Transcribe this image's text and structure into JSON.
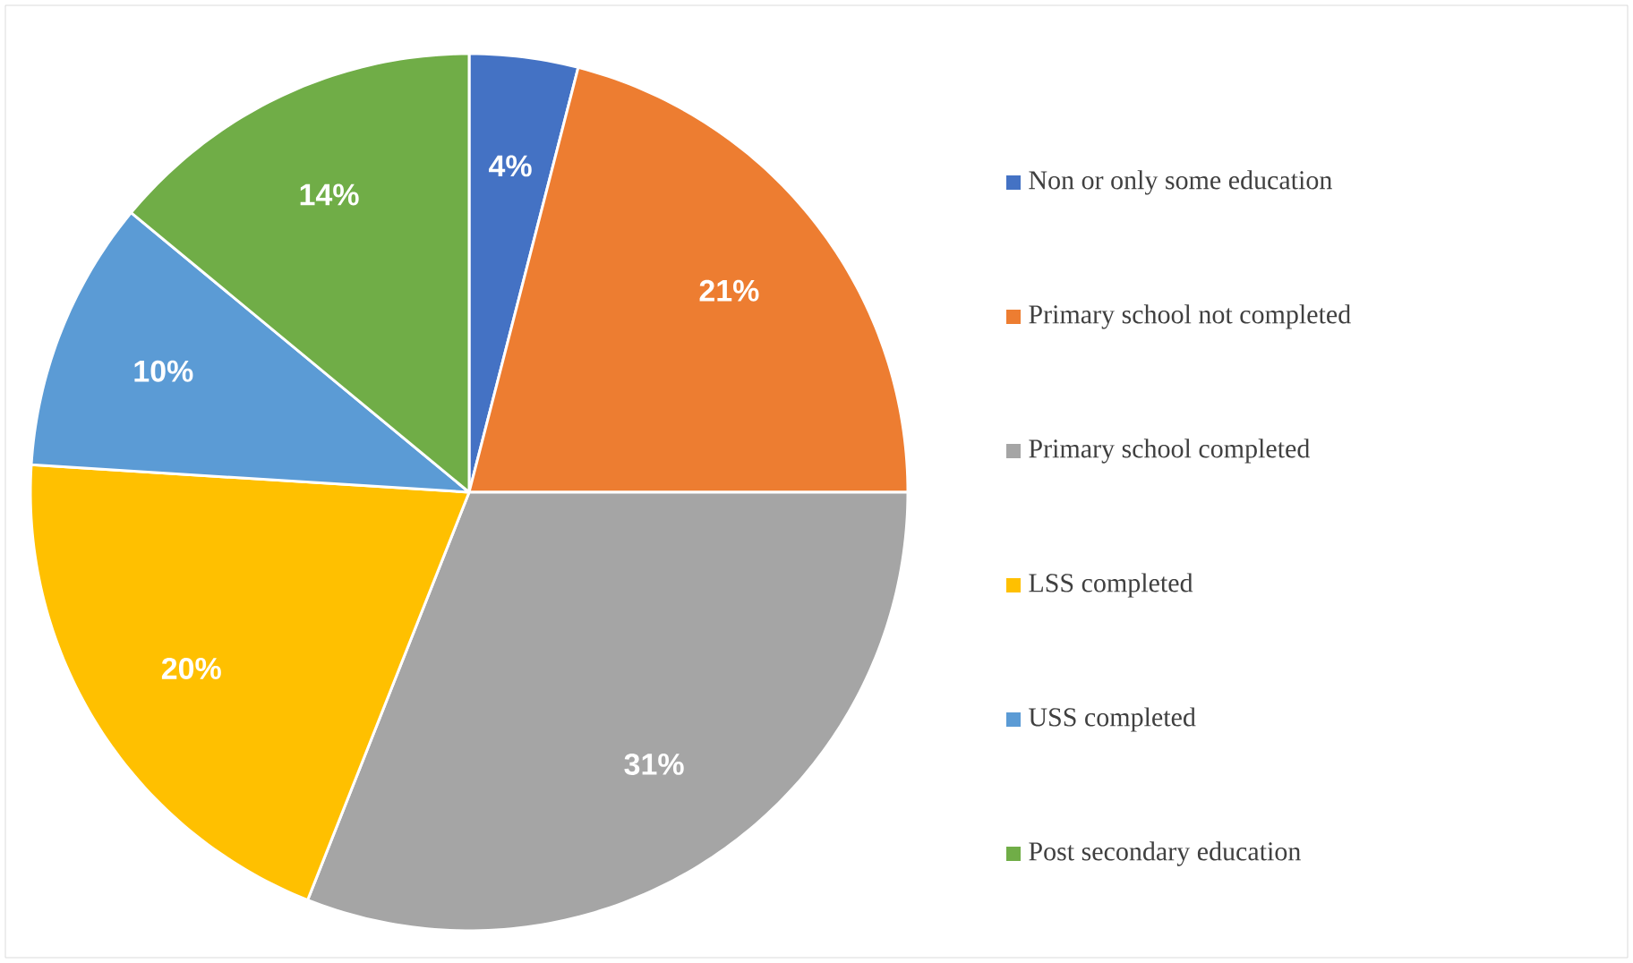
{
  "chart_data": {
    "type": "pie",
    "categories": [
      "Non or only some education",
      "Primary school not completed",
      "Primary school completed",
      "LSS completed",
      "USS completed",
      "Post secondary education"
    ],
    "values": [
      4,
      21,
      31,
      20,
      10,
      14
    ],
    "colors": [
      "#4472c4",
      "#ed7d31",
      "#a5a5a5",
      "#ffc000",
      "#5b9bd5",
      "#70ad47"
    ],
    "value_labels": [
      "4%",
      "21%",
      "31%",
      "20%",
      "10%",
      "14%"
    ],
    "legend": "right"
  }
}
